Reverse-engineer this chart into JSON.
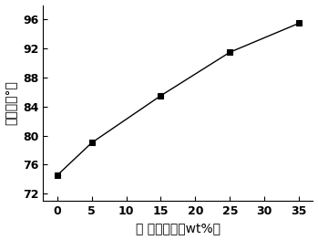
{
  "x": [
    0,
    5,
    15,
    25,
    35
  ],
  "y": [
    74.5,
    79.0,
    85.5,
    91.5,
    95.5
  ],
  "xlabel": "蘎 麥油含量（wt%）",
  "ylabel": "接触角（°）",
  "xlim": [
    -2,
    37
  ],
  "ylim": [
    71,
    98
  ],
  "xticks": [
    0,
    5,
    10,
    15,
    20,
    25,
    30,
    35
  ],
  "yticks": [
    72,
    76,
    80,
    84,
    88,
    92,
    96
  ],
  "marker": "s",
  "marker_size": 5,
  "line_color": "#000000",
  "marker_color": "#000000",
  "background_color": "#ffffff",
  "font_size_label": 10,
  "font_size_tick": 9
}
